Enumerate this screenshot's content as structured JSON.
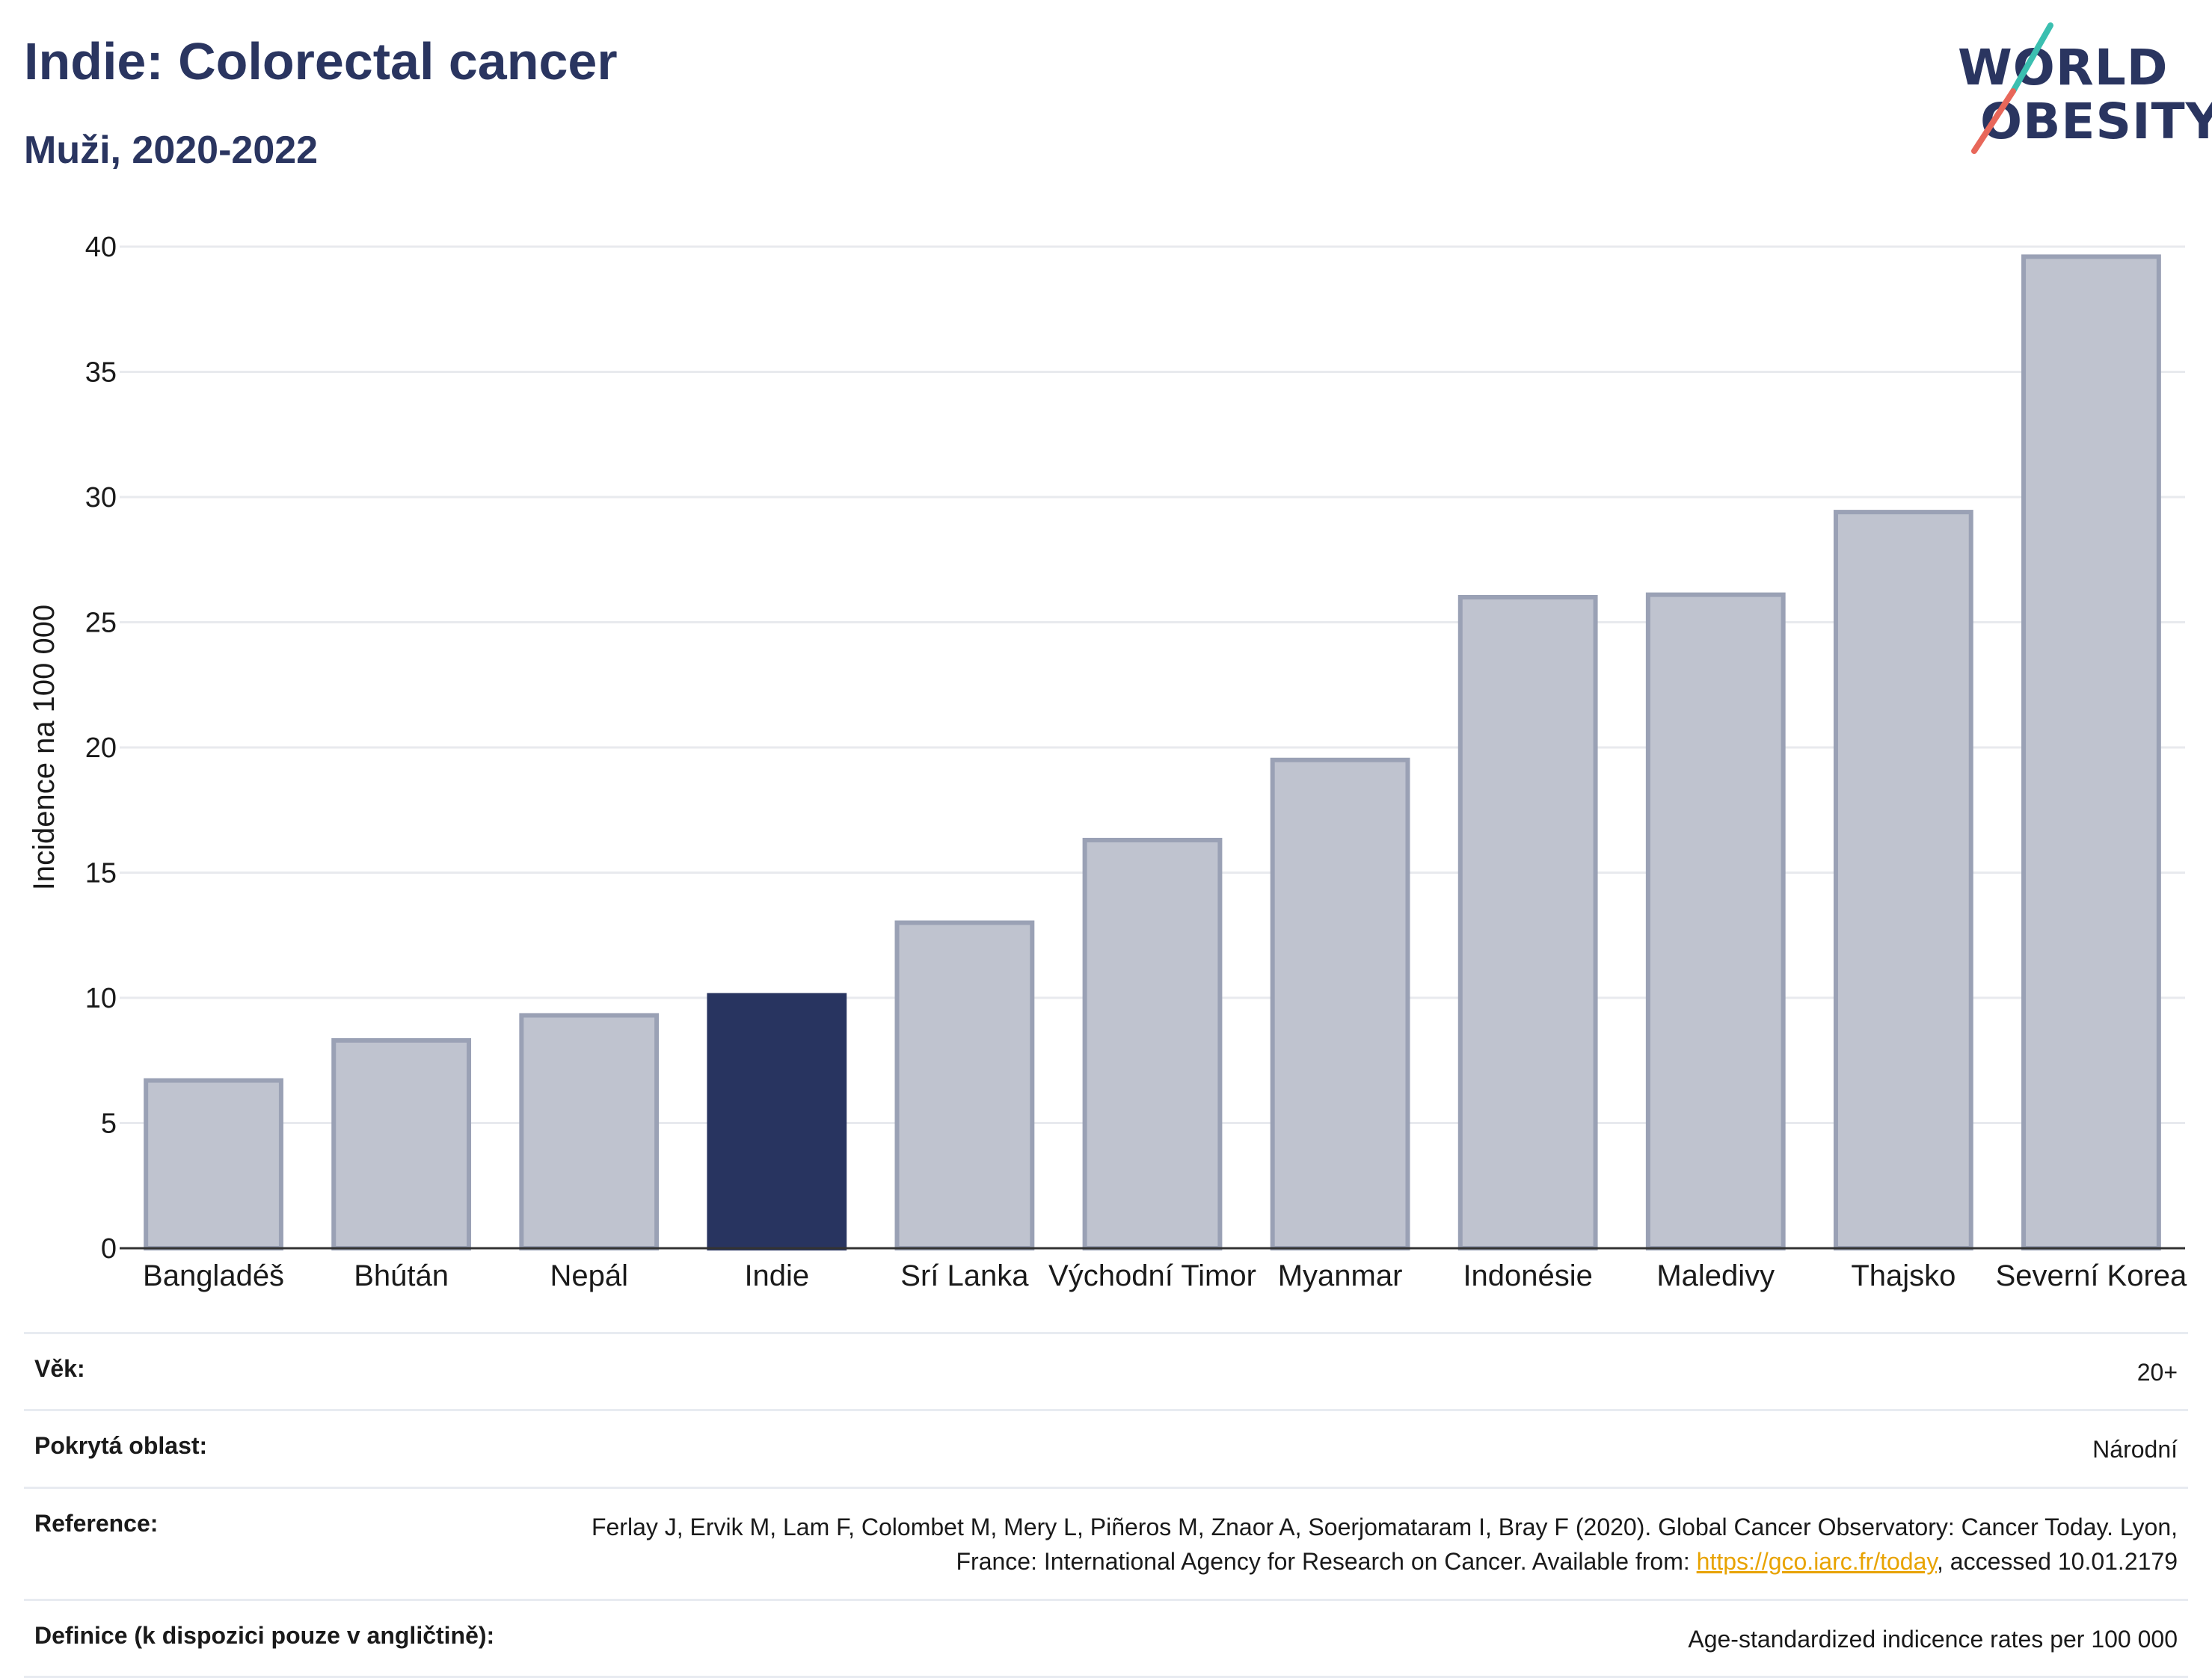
{
  "header": {
    "title": "Indie: Colorectal cancer",
    "subtitle": "Muži, 2020-2022"
  },
  "logo": {
    "line1": "WORLD",
    "line2": "OBESITY",
    "colors": {
      "text": "#2a3560",
      "slash_top": "#3bbfb0",
      "slash_bottom": "#e8675a"
    }
  },
  "chart_data": {
    "type": "bar",
    "ylabel": "Incidence na 100 000",
    "xlabel": "",
    "ylim": [
      0,
      40
    ],
    "yticks": [
      0,
      5,
      10,
      15,
      20,
      25,
      30,
      35,
      40
    ],
    "grid": true,
    "categories": [
      "Bangladéš",
      "Bhútán",
      "Nepál",
      "Indie",
      "Srí Lanka",
      "Východní Timor",
      "Myanmar",
      "Indonésie",
      "Maledivy",
      "Thajsko",
      "Severní Korea"
    ],
    "values": [
      6.7,
      8.3,
      9.3,
      10.1,
      13.0,
      16.3,
      19.5,
      26.0,
      26.1,
      29.4,
      39.6
    ],
    "highlight": "Indie",
    "colors": {
      "bar": "#bfc3cf",
      "bar_border": "#9aa1b5",
      "highlight": "#283460",
      "grid": "#e8eaee",
      "axis": "#333333"
    }
  },
  "info": {
    "rows": [
      {
        "label": "Věk:",
        "value": "20+"
      },
      {
        "label": "Pokrytá oblast:",
        "value": "Národní"
      },
      {
        "label": "Reference:",
        "value_pre": "Ferlay J, Ervik M, Lam F, Colombet M, Mery L, Piñeros M, Znaor A, Soerjomataram I, Bray F (2020). Global Cancer Observatory: Cancer Today. Lyon, France: International Agency for Research on Cancer. Available from: ",
        "link": "https://gco.iarc.fr/today",
        "value_post": ", accessed 10.01.2179"
      },
      {
        "label": "Definice (k dispozici pouze v angličtině):",
        "value": "Age-standardized indicence rates per 100 000"
      }
    ]
  }
}
